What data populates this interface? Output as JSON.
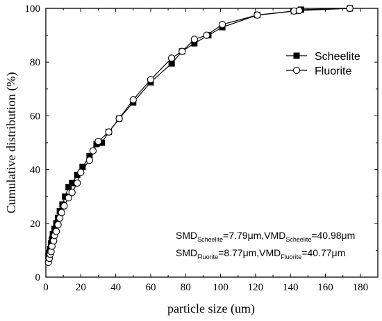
{
  "chart_data": {
    "type": "line",
    "xlabel": "particle size (um)",
    "ylabel": "Cumulative distribution (%)",
    "xlim": [
      0,
      190
    ],
    "ylim": [
      0,
      100
    ],
    "x_ticks": [
      0,
      20,
      40,
      60,
      80,
      100,
      120,
      140,
      160,
      180
    ],
    "y_ticks": [
      0,
      20,
      40,
      60,
      80,
      100
    ],
    "legend_position": "top-right",
    "series": [
      {
        "name": "Scheelite",
        "marker": "filled-square",
        "color": "#000000",
        "x": [
          1.5,
          2.0,
          2.5,
          3.0,
          3.5,
          4.0,
          5.0,
          6.0,
          7.0,
          8.0,
          9.5,
          11.0,
          13.0,
          15.0,
          18.0,
          21.0,
          25.0,
          29.0,
          32.0,
          36.0,
          42.0,
          50.0,
          60.0,
          72.0,
          78.0,
          85.0,
          93.0,
          101.0,
          121.0,
          142.0,
          146.0,
          174.0
        ],
        "y": [
          8.0,
          9.0,
          10.5,
          12.5,
          14.0,
          16.0,
          18.0,
          20.0,
          22.0,
          24.5,
          27.0,
          30.0,
          33.5,
          35.0,
          38.0,
          41.0,
          45.0,
          49.5,
          50.0,
          54.0,
          59.0,
          65.0,
          72.5,
          79.5,
          84.0,
          87.0,
          90.0,
          93.0,
          97.5,
          99.0,
          99.5,
          100.0
        ]
      },
      {
        "name": "Fluorite",
        "marker": "open-circle",
        "color": "#000000",
        "x": [
          1.5,
          2.0,
          2.5,
          3.0,
          3.5,
          4.5,
          5.0,
          6.0,
          7.0,
          8.0,
          9.0,
          10.5,
          13.0,
          15.0,
          18.0,
          20.0,
          25.0,
          27.0,
          30.0,
          36.0,
          42.0,
          50.0,
          60.0,
          72.0,
          78.0,
          85.0,
          92.0,
          101.0,
          121.0,
          142.0,
          145.0,
          174.0
        ],
        "y": [
          5.5,
          7.0,
          8.5,
          9.5,
          11.5,
          13.5,
          15.5,
          17.0,
          19.5,
          22.0,
          24.0,
          26.5,
          29.5,
          31.5,
          35.0,
          39.0,
          43.5,
          47.0,
          50.5,
          54.0,
          59.0,
          66.0,
          73.5,
          81.5,
          84.0,
          88.5,
          90.0,
          94.0,
          97.5,
          99.0,
          99.2,
          100.0
        ]
      }
    ],
    "annotations": [
      {
        "parts": [
          {
            "text": "SMD",
            "sub": false
          },
          {
            "text": "Scheelite",
            "sub": true
          },
          {
            "text": "=7.79μm,VMD",
            "sub": false
          },
          {
            "text": "Scheelite",
            "sub": true
          },
          {
            "text": "=40.98μm",
            "sub": false
          }
        ]
      },
      {
        "parts": [
          {
            "text": "SMD",
            "sub": false
          },
          {
            "text": "Fluorite",
            "sub": true
          },
          {
            "text": "=8.77μm,VMD",
            "sub": false
          },
          {
            "text": "Fluorite",
            "sub": true
          },
          {
            "text": "=40.77μm",
            "sub": false
          }
        ]
      }
    ]
  }
}
